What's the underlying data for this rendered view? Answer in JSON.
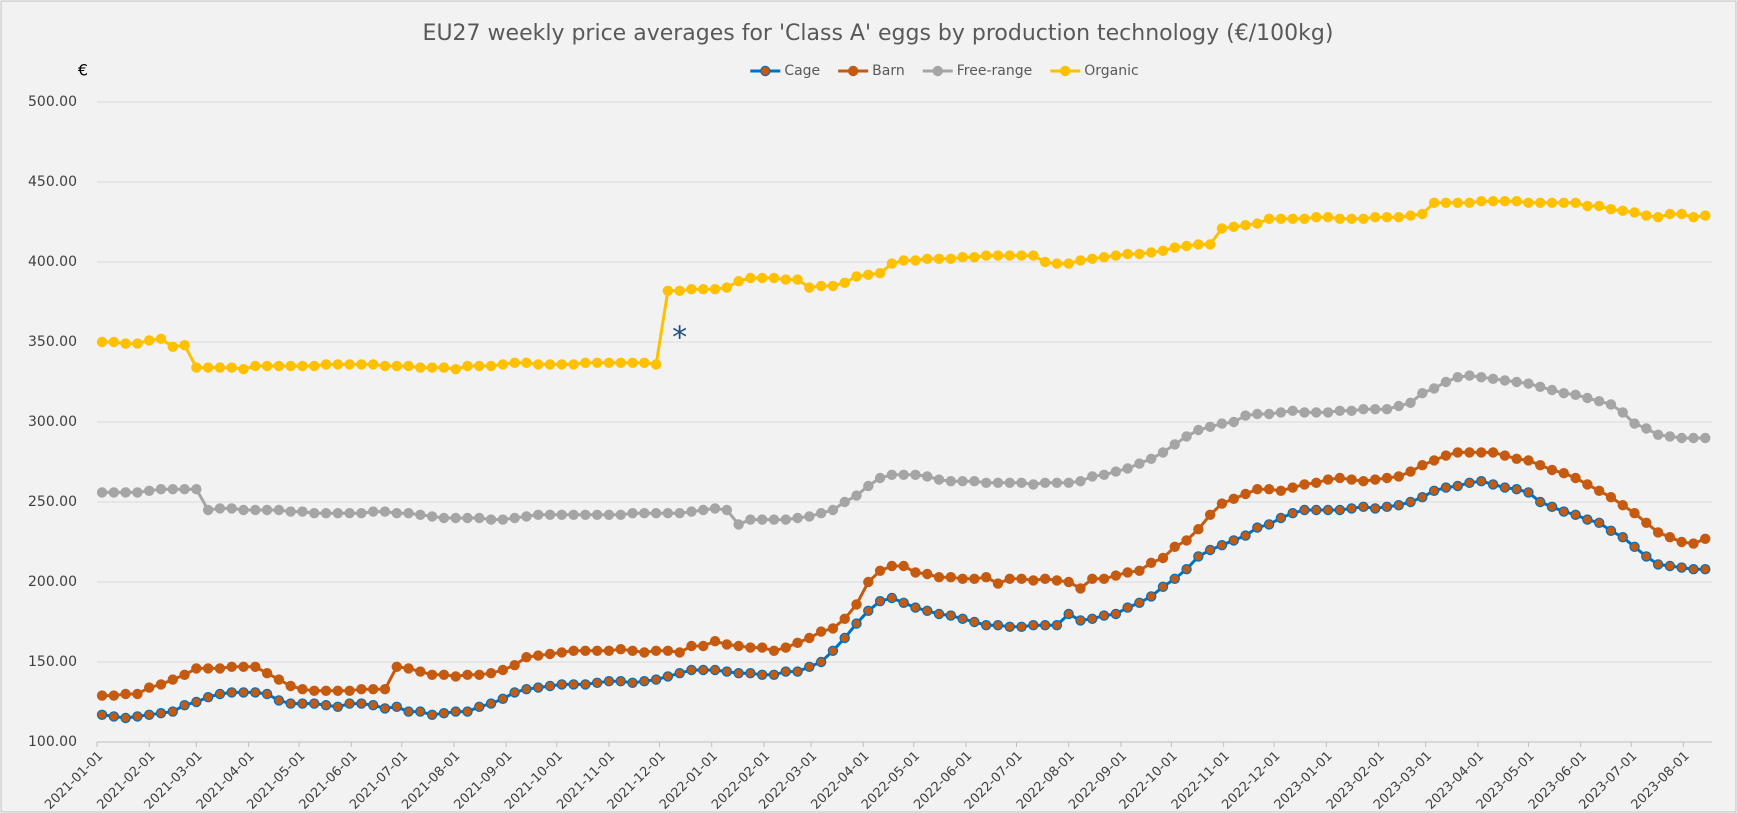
{
  "chart_data": {
    "type": "line",
    "title": "EU27 weekly price averages for 'Class A' eggs by production technology (€/100kg)",
    "ylabel": "€",
    "legend": "top",
    "grid": true,
    "x": [
      "2021-01-04",
      "2021-01-11",
      "2021-01-18",
      "2021-01-25",
      "2021-02-01",
      "2021-02-08",
      "2021-02-15",
      "2021-02-22",
      "2021-03-01",
      "2021-03-08",
      "2021-03-15",
      "2021-03-22",
      "2021-03-29",
      "2021-04-05",
      "2021-04-12",
      "2021-04-19",
      "2021-04-26",
      "2021-05-03",
      "2021-05-10",
      "2021-05-17",
      "2021-05-24",
      "2021-05-31",
      "2021-06-07",
      "2021-06-14",
      "2021-06-21",
      "2021-06-28",
      "2021-07-05",
      "2021-07-12",
      "2021-07-19",
      "2021-07-26",
      "2021-08-02",
      "2021-08-09",
      "2021-08-16",
      "2021-08-23",
      "2021-08-30",
      "2021-09-06",
      "2021-09-13",
      "2021-09-20",
      "2021-09-27",
      "2021-10-04",
      "2021-10-11",
      "2021-10-18",
      "2021-10-25",
      "2021-11-01",
      "2021-11-08",
      "2021-11-15",
      "2021-11-22",
      "2021-11-29",
      "2021-12-06",
      "2021-12-13",
      "2021-12-20",
      "2021-12-27",
      "2022-01-03",
      "2022-01-10",
      "2022-01-17",
      "2022-01-24",
      "2022-01-31",
      "2022-02-07",
      "2022-02-14",
      "2022-02-21",
      "2022-02-28",
      "2022-03-07",
      "2022-03-14",
      "2022-03-21",
      "2022-03-28",
      "2022-04-04",
      "2022-04-11",
      "2022-04-18",
      "2022-04-25",
      "2022-05-02",
      "2022-05-09",
      "2022-05-16",
      "2022-05-23",
      "2022-05-30",
      "2022-06-06",
      "2022-06-13",
      "2022-06-20",
      "2022-06-27",
      "2022-07-04",
      "2022-07-11",
      "2022-07-18",
      "2022-07-25",
      "2022-08-01",
      "2022-08-08",
      "2022-08-15",
      "2022-08-22",
      "2022-08-29",
      "2022-09-05",
      "2022-09-12",
      "2022-09-19",
      "2022-09-26",
      "2022-10-03",
      "2022-10-10",
      "2022-10-17",
      "2022-10-24",
      "2022-10-31",
      "2022-11-07",
      "2022-11-14",
      "2022-11-21",
      "2022-11-28",
      "2022-12-05",
      "2022-12-12",
      "2022-12-19",
      "2022-12-26",
      "2023-01-02",
      "2023-01-09",
      "2023-01-16",
      "2023-01-23",
      "2023-01-30",
      "2023-02-06",
      "2023-02-13",
      "2023-02-20",
      "2023-02-27",
      "2023-03-06",
      "2023-03-13",
      "2023-03-20",
      "2023-03-27",
      "2023-04-03",
      "2023-04-10",
      "2023-04-17",
      "2023-04-24",
      "2023-05-01",
      "2023-05-08",
      "2023-05-15",
      "2023-05-22",
      "2023-05-29",
      "2023-06-05",
      "2023-06-12",
      "2023-06-19",
      "2023-06-26",
      "2023-07-03",
      "2023-07-10",
      "2023-07-17",
      "2023-07-24",
      "2023-07-31",
      "2023-08-07",
      "2023-08-14"
    ],
    "series": [
      {
        "name": "Cage",
        "color": "#0070c0",
        "marker_color": "#c55a11",
        "values": [
          117,
          116,
          115,
          116,
          117,
          118,
          119,
          123,
          125,
          128,
          130,
          131,
          131,
          131,
          130,
          126,
          124,
          124,
          124,
          123,
          122,
          124,
          124,
          123,
          121,
          122,
          119,
          119,
          117,
          118,
          119,
          119,
          122,
          124,
          127,
          131,
          133,
          134,
          135,
          136,
          136,
          136,
          137,
          138,
          138,
          137,
          138,
          139,
          141,
          143,
          145,
          145,
          145,
          144,
          143,
          143,
          142,
          142,
          144,
          144,
          147,
          150,
          157,
          165,
          174,
          182,
          188,
          190,
          187,
          184,
          182,
          180,
          179,
          177,
          175,
          173,
          173,
          172,
          172,
          173,
          173,
          173,
          180,
          176,
          177,
          179,
          180,
          184,
          187,
          191,
          197,
          202,
          208,
          216,
          220,
          223,
          226,
          229,
          234,
          236,
          240,
          243,
          245,
          245,
          245,
          245,
          246,
          247,
          246,
          247,
          248,
          250,
          253,
          257,
          259,
          260,
          262,
          263,
          261,
          259,
          258,
          256,
          250,
          247,
          244,
          242,
          239,
          237,
          232,
          228,
          222,
          216,
          211,
          210,
          209,
          208,
          208
        ]
      },
      {
        "name": "Barn",
        "color": "#c55a11",
        "marker_color": "#c55a11",
        "values": [
          129,
          129,
          130,
          130,
          134,
          136,
          139,
          142,
          146,
          146,
          146,
          147,
          147,
          147,
          143,
          139,
          135,
          133,
          132,
          132,
          132,
          132,
          133,
          133,
          133,
          147,
          146,
          144,
          142,
          142,
          141,
          142,
          142,
          143,
          145,
          148,
          153,
          154,
          155,
          156,
          157,
          157,
          157,
          157,
          158,
          157,
          156,
          157,
          157,
          156,
          160,
          160,
          163,
          161,
          160,
          159,
          159,
          157,
          159,
          162,
          165,
          169,
          171,
          177,
          186,
          200,
          207,
          210,
          210,
          206,
          205,
          203,
          203,
          202,
          202,
          203,
          199,
          202,
          202,
          201,
          202,
          201,
          200,
          196,
          202,
          202,
          204,
          206,
          207,
          212,
          215,
          222,
          226,
          233,
          242,
          249,
          252,
          255,
          258,
          258,
          257,
          259,
          261,
          262,
          264,
          265,
          264,
          263,
          264,
          265,
          266,
          269,
          273,
          276,
          279,
          281,
          281,
          281,
          281,
          279,
          277,
          276,
          273,
          270,
          268,
          265,
          261,
          257,
          253,
          248,
          243,
          237,
          231,
          228,
          225,
          224,
          227
        ]
      },
      {
        "name": "Free-range",
        "color": "#a5a5a5",
        "marker_color": "#a5a5a5",
        "values": [
          256,
          256,
          256,
          256,
          257,
          258,
          258,
          258,
          258,
          245,
          246,
          246,
          245,
          245,
          245,
          245,
          244,
          244,
          243,
          243,
          243,
          243,
          243,
          244,
          244,
          243,
          243,
          242,
          241,
          240,
          240,
          240,
          240,
          239,
          239,
          240,
          241,
          242,
          242,
          242,
          242,
          242,
          242,
          242,
          242,
          243,
          243,
          243,
          243,
          243,
          244,
          245,
          246,
          245,
          236,
          239,
          239,
          239,
          239,
          240,
          241,
          243,
          245,
          250,
          254,
          260,
          265,
          267,
          267,
          267,
          266,
          264,
          263,
          263,
          263,
          262,
          262,
          262,
          262,
          261,
          262,
          262,
          262,
          263,
          266,
          267,
          269,
          271,
          274,
          277,
          281,
          286,
          291,
          295,
          297,
          299,
          300,
          304,
          305,
          305,
          306,
          307,
          306,
          306,
          306,
          307,
          307,
          308,
          308,
          308,
          310,
          312,
          318,
          321,
          325,
          328,
          329,
          328,
          327,
          326,
          325,
          324,
          322,
          320,
          318,
          317,
          315,
          313,
          311,
          306,
          299,
          296,
          292,
          291,
          290,
          290,
          290
        ]
      },
      {
        "name": "Organic",
        "color": "#ffc000",
        "marker_color": "#ffc000",
        "values": [
          350,
          350,
          349,
          349,
          351,
          352,
          347,
          348,
          334,
          334,
          334,
          334,
          333,
          335,
          335,
          335,
          335,
          335,
          335,
          336,
          336,
          336,
          336,
          336,
          335,
          335,
          335,
          334,
          334,
          334,
          333,
          335,
          335,
          335,
          336,
          337,
          337,
          336,
          336,
          336,
          336,
          337,
          337,
          337,
          337,
          337,
          337,
          336,
          382,
          382,
          383,
          383,
          383,
          384,
          388,
          390,
          390,
          390,
          389,
          389,
          384,
          385,
          385,
          387,
          391,
          392,
          393,
          399,
          401,
          401,
          402,
          402,
          402,
          403,
          403,
          404,
          404,
          404,
          404,
          404,
          400,
          399,
          399,
          401,
          402,
          403,
          404,
          405,
          405,
          406,
          407,
          409,
          410,
          411,
          411,
          421,
          422,
          423,
          424,
          427,
          427,
          427,
          427,
          428,
          428,
          427,
          427,
          427,
          428,
          428,
          428,
          429,
          430,
          437,
          437,
          437,
          437,
          438,
          438,
          438,
          438,
          437,
          437,
          437,
          437,
          437,
          435,
          435,
          433,
          432,
          431,
          429,
          428,
          430,
          430,
          428,
          429
        ]
      }
    ],
    "annotations": [
      {
        "text": "*",
        "x": "2021-12-13",
        "y": 352,
        "color": "#1f4e79"
      }
    ],
    "xlim": [
      "2021-01-01",
      "2023-08-18"
    ],
    "xticks": [
      "2021-01-01",
      "2021-02-01",
      "2021-03-01",
      "2021-04-01",
      "2021-05-01",
      "2021-06-01",
      "2021-07-01",
      "2021-08-01",
      "2021-09-01",
      "2021-10-01",
      "2021-11-01",
      "2021-12-01",
      "2022-01-01",
      "2022-02-01",
      "2022-03-01",
      "2022-04-01",
      "2022-05-01",
      "2022-06-01",
      "2022-07-01",
      "2022-08-01",
      "2022-09-01",
      "2022-10-01",
      "2022-11-01",
      "2022-12-01",
      "2023-01-01",
      "2023-02-01",
      "2023-03-01",
      "2023-04-01",
      "2023-05-01",
      "2023-06-01",
      "2023-07-01",
      "2023-08-01"
    ],
    "ylim": [
      100,
      500
    ],
    "yticks": [
      {
        "value": 100,
        "label": "100.00"
      },
      {
        "value": 150,
        "label": "150.00"
      },
      {
        "value": 200,
        "label": "200.00"
      },
      {
        "value": 250,
        "label": "250.00"
      },
      {
        "value": 300,
        "label": "300.00"
      },
      {
        "value": 350,
        "label": "350.00"
      },
      {
        "value": 400,
        "label": "400.00"
      },
      {
        "value": 450,
        "label": "450.00"
      },
      {
        "value": 500,
        "label": "500.00"
      }
    ]
  }
}
